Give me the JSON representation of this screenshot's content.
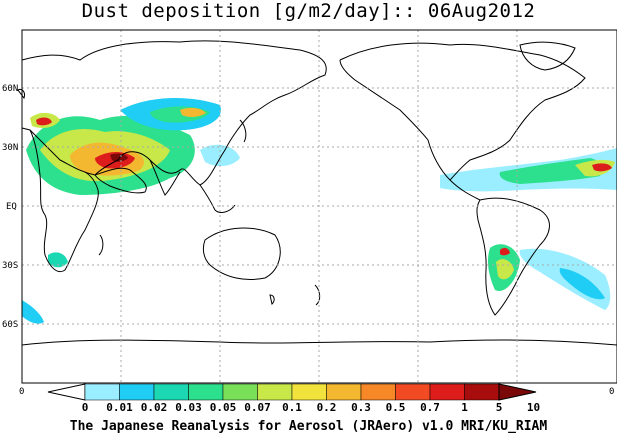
{
  "title": "Dust deposition [g/m2/day]:: 06Aug2012",
  "credit": "The Japanese Reanalysis for Aerosol (JRAero) v1.0 MRI/KU_RIAM",
  "axes": {
    "lat_labels": [
      "60N",
      "30N",
      "EQ",
      "30S",
      "60S"
    ],
    "lon_edge_labels": [
      "0",
      "0"
    ]
  },
  "legend": {
    "levels": [
      "0",
      "0.01",
      "0.02",
      "0.03",
      "0.05",
      "0.07",
      "0.1",
      "0.2",
      "0.3",
      "0.5",
      "0.7",
      "1",
      "5",
      "10"
    ],
    "colors": [
      "#ffffff",
      "#9aeeff",
      "#1fcdf5",
      "#1cd8b2",
      "#2ce08d",
      "#7ae05a",
      "#c8e84a",
      "#f2e23c",
      "#f4b830",
      "#f78828",
      "#f24a22",
      "#dd1c1c",
      "#a80d0d",
      "#7a0808"
    ]
  },
  "colors": {
    "land_outline": "#000000",
    "grid": "#aaaaaa",
    "sea": "#ffffff"
  }
}
